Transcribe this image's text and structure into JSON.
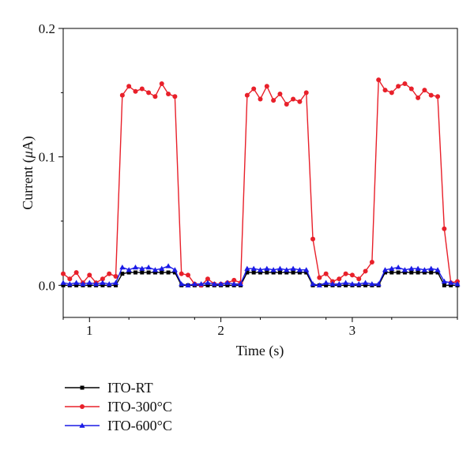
{
  "chart_data": {
    "type": "line",
    "title": "",
    "xlabel": "Time (s)",
    "ylabel_prefix": "Current (",
    "ylabel_symbol": "μ",
    "ylabel_suffix": "A)",
    "xlim": [
      0.8,
      3.8
    ],
    "ylim": [
      -0.025,
      0.2
    ],
    "x_ticks": [
      1,
      2,
      3
    ],
    "x_tick_labels": [
      "1",
      "2",
      "3"
    ],
    "y_ticks": [
      0.0,
      0.1,
      0.2
    ],
    "y_tick_labels": [
      "0.0",
      "0.1",
      "0.2"
    ],
    "grid": false,
    "legend_position": "below-left",
    "series": [
      {
        "name": "ITO-RT",
        "color": "#000000",
        "marker": "square",
        "x": [
          0.8,
          0.85,
          0.9,
          0.95,
          1.0,
          1.05,
          1.1,
          1.15,
          1.2,
          1.25,
          1.3,
          1.35,
          1.4,
          1.45,
          1.5,
          1.55,
          1.6,
          1.65,
          1.7,
          1.75,
          1.8,
          1.85,
          1.9,
          1.95,
          2.0,
          2.05,
          2.1,
          2.15,
          2.2,
          2.25,
          2.3,
          2.35,
          2.4,
          2.45,
          2.5,
          2.55,
          2.6,
          2.65,
          2.7,
          2.75,
          2.8,
          2.85,
          2.9,
          2.95,
          3.0,
          3.05,
          3.1,
          3.15,
          3.2,
          3.25,
          3.3,
          3.35,
          3.4,
          3.45,
          3.5,
          3.55,
          3.6,
          3.65,
          3.7,
          3.75,
          3.8
        ],
        "y": [
          0.0,
          0.0,
          0.0,
          0.0,
          0.0,
          0.0,
          0.0,
          0.0,
          0.0,
          0.009,
          0.01,
          0.01,
          0.01,
          0.01,
          0.01,
          0.01,
          0.01,
          0.01,
          0.0,
          0.0,
          0.0,
          0.0,
          0.0,
          0.0,
          0.0,
          0.0,
          0.0,
          0.0,
          0.01,
          0.01,
          0.01,
          0.01,
          0.01,
          0.01,
          0.01,
          0.01,
          0.01,
          0.01,
          0.0,
          0.0,
          0.0,
          0.0,
          0.0,
          0.0,
          0.0,
          0.0,
          0.0,
          0.0,
          0.0,
          0.01,
          0.01,
          0.01,
          0.01,
          0.01,
          0.01,
          0.01,
          0.01,
          0.01,
          0.0,
          0.0,
          0.0
        ]
      },
      {
        "name": "ITO-300°C",
        "color": "#e8202a",
        "marker": "circle",
        "x": [
          0.8,
          0.85,
          0.9,
          0.95,
          1.0,
          1.05,
          1.1,
          1.15,
          1.2,
          1.25,
          1.3,
          1.35,
          1.4,
          1.45,
          1.5,
          1.55,
          1.6,
          1.65,
          1.7,
          1.75,
          1.8,
          1.85,
          1.9,
          1.95,
          2.0,
          2.05,
          2.1,
          2.15,
          2.2,
          2.25,
          2.3,
          2.35,
          2.4,
          2.45,
          2.5,
          2.55,
          2.6,
          2.65,
          2.7,
          2.75,
          2.8,
          2.85,
          2.9,
          2.95,
          3.0,
          3.05,
          3.1,
          3.15,
          3.2,
          3.25,
          3.3,
          3.35,
          3.4,
          3.45,
          3.5,
          3.55,
          3.6,
          3.65,
          3.7,
          3.75,
          3.8
        ],
        "y": [
          0.009,
          0.005,
          0.01,
          0.002,
          0.008,
          0.002,
          0.005,
          0.009,
          0.007,
          0.148,
          0.155,
          0.151,
          0.153,
          0.15,
          0.147,
          0.157,
          0.149,
          0.147,
          0.009,
          0.008,
          0.001,
          0.0,
          0.005,
          0.001,
          0.001,
          0.002,
          0.004,
          0.002,
          0.148,
          0.153,
          0.145,
          0.155,
          0.144,
          0.149,
          0.141,
          0.145,
          0.143,
          0.15,
          0.036,
          0.006,
          0.009,
          0.003,
          0.005,
          0.009,
          0.008,
          0.005,
          0.011,
          0.018,
          0.16,
          0.152,
          0.15,
          0.155,
          0.157,
          0.153,
          0.146,
          0.152,
          0.148,
          0.147,
          0.044,
          0.002,
          0.003
        ]
      },
      {
        "name": "ITO-600°C",
        "color": "#1a1ae6",
        "marker": "triangle",
        "x": [
          0.8,
          0.85,
          0.9,
          0.95,
          1.0,
          1.05,
          1.1,
          1.15,
          1.2,
          1.25,
          1.3,
          1.35,
          1.4,
          1.45,
          1.5,
          1.55,
          1.6,
          1.65,
          1.7,
          1.75,
          1.8,
          1.85,
          1.9,
          1.95,
          2.0,
          2.05,
          2.1,
          2.15,
          2.2,
          2.25,
          2.3,
          2.35,
          2.4,
          2.45,
          2.5,
          2.55,
          2.6,
          2.65,
          2.7,
          2.75,
          2.8,
          2.85,
          2.9,
          2.95,
          3.0,
          3.05,
          3.1,
          3.15,
          3.2,
          3.25,
          3.3,
          3.35,
          3.4,
          3.45,
          3.5,
          3.55,
          3.6,
          3.65,
          3.7,
          3.75,
          3.8
        ],
        "y": [
          0.002,
          0.001,
          0.002,
          0.001,
          0.002,
          0.001,
          0.002,
          0.001,
          0.002,
          0.014,
          0.012,
          0.014,
          0.013,
          0.014,
          0.012,
          0.013,
          0.015,
          0.012,
          0.001,
          0.0,
          0.001,
          0.001,
          0.002,
          0.001,
          0.001,
          0.002,
          0.001,
          0.001,
          0.013,
          0.013,
          0.012,
          0.013,
          0.012,
          0.013,
          0.012,
          0.013,
          0.012,
          0.012,
          0.001,
          0.0,
          0.002,
          0.001,
          0.001,
          0.002,
          0.001,
          0.001,
          0.002,
          0.001,
          0.001,
          0.012,
          0.013,
          0.014,
          0.012,
          0.013,
          0.013,
          0.012,
          0.013,
          0.012,
          0.003,
          0.002,
          0.001
        ]
      }
    ]
  }
}
